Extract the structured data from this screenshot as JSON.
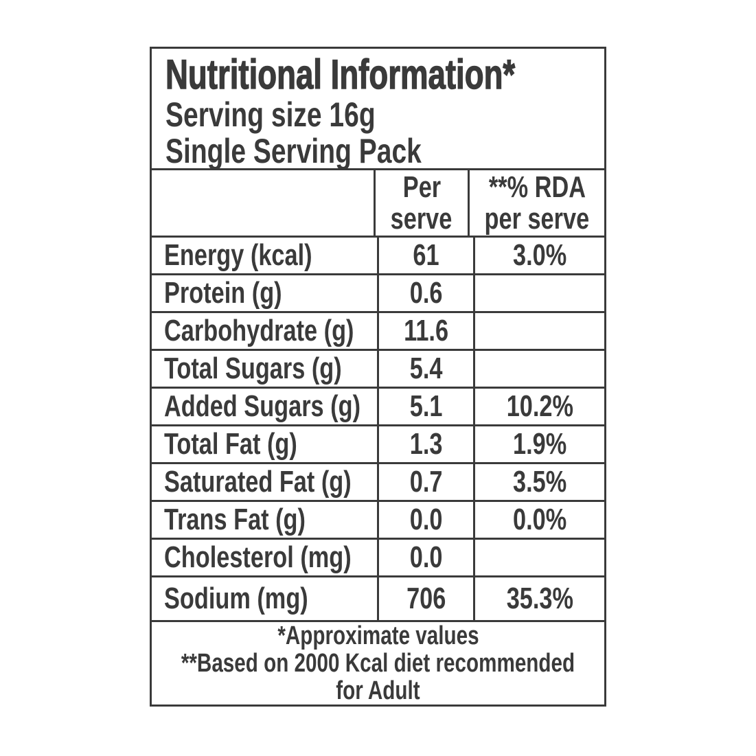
{
  "title_block": {
    "title": "Nutritional Information*",
    "serving_size": "Serving size 16g",
    "pack_type": "Single Serving Pack"
  },
  "column_headers": {
    "per_serve_line1": "Per",
    "per_serve_line2": "serve",
    "rda_line1": "**% RDA",
    "rda_line2": "per serve"
  },
  "rows": [
    {
      "label": "Energy (kcal)",
      "per_serve": "61",
      "rda": "3.0%"
    },
    {
      "label": "Protein (g)",
      "per_serve": "0.6",
      "rda": ""
    },
    {
      "label": "Carbohydrate (g)",
      "per_serve": "11.6",
      "rda": ""
    },
    {
      "label": "Total Sugars (g)",
      "per_serve": "5.4",
      "rda": ""
    },
    {
      "label": "Added Sugars (g)",
      "per_serve": "5.1",
      "rda": "10.2%"
    },
    {
      "label": "Total Fat (g)",
      "per_serve": "1.3",
      "rda": "1.9%"
    },
    {
      "label": "Saturated Fat (g)",
      "per_serve": "0.7",
      "rda": "3.5%"
    },
    {
      "label": "Trans Fat (g)",
      "per_serve": "0.0",
      "rda": "0.0%"
    },
    {
      "label": "Cholesterol (mg)",
      "per_serve": "0.0",
      "rda": ""
    },
    {
      "label": "Sodium (mg)",
      "per_serve": "706",
      "rda": "35.3%"
    }
  ],
  "footnotes": {
    "line1": "*Approximate values",
    "line2": "**Based on 2000 Kcal diet recommended",
    "line3": "for Adult"
  },
  "colors": {
    "text": "#3a3a3a",
    "border": "#3a3a3a",
    "background": "#ffffff"
  }
}
